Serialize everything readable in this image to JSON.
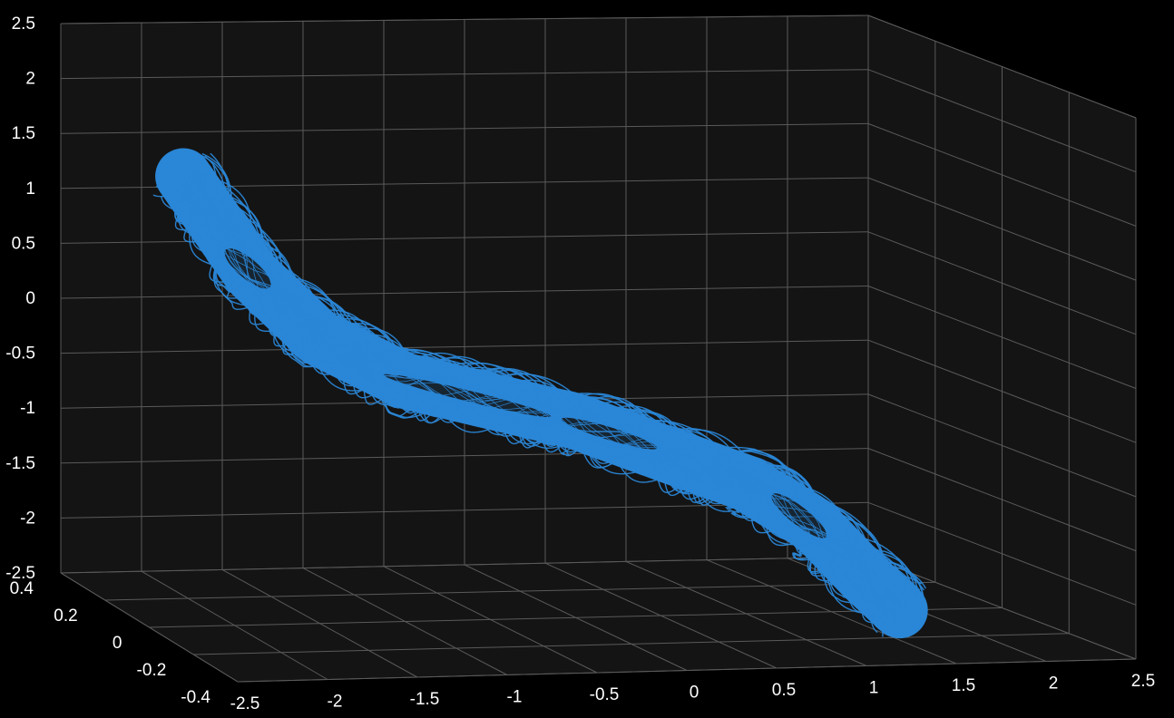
{
  "chart_data": {
    "type": "line3d",
    "title": "",
    "xlabel": "",
    "ylabel": "",
    "zlabel": "",
    "xlim": [
      -2.5,
      2.5
    ],
    "ylim": [
      -0.4,
      0.4
    ],
    "zlim": [
      -2.5,
      2.5
    ],
    "x_ticks": [
      "-2.5",
      "-2",
      "-1.5",
      "-1",
      "-0.5",
      "0",
      "0.5",
      "1",
      "1.5",
      "2",
      "2.5"
    ],
    "y_ticks": [
      "-0.4",
      "-0.2",
      "0",
      "0.2",
      "0.4"
    ],
    "z_ticks": [
      "-2.5",
      "-2",
      "-1.5",
      "-1",
      "-0.5",
      "0",
      "0.5",
      "1",
      "1.5",
      "2",
      "2.5"
    ],
    "grid": true,
    "background": "#141414",
    "gridColor": "#5a5a5a",
    "series": [
      {
        "color": "#2a86d6",
        "description": "chaotic double-scroll attractor trajectory",
        "points": [
          [
            -2.3,
            0.0,
            1.6
          ],
          [
            -1.9,
            0.0,
            0.7
          ],
          [
            -1.5,
            0.0,
            0.1
          ],
          [
            -1.0,
            0.0,
            -0.3
          ],
          [
            -0.5,
            0.0,
            -0.5
          ],
          [
            0.0,
            0.0,
            -0.7
          ],
          [
            0.5,
            0.0,
            -1.0
          ],
          [
            1.0,
            0.0,
            -1.3
          ],
          [
            1.4,
            0.0,
            -1.7
          ],
          [
            1.7,
            0.0,
            -2.2
          ],
          [
            1.9,
            0.0,
            -2.5
          ]
        ]
      }
    ]
  }
}
